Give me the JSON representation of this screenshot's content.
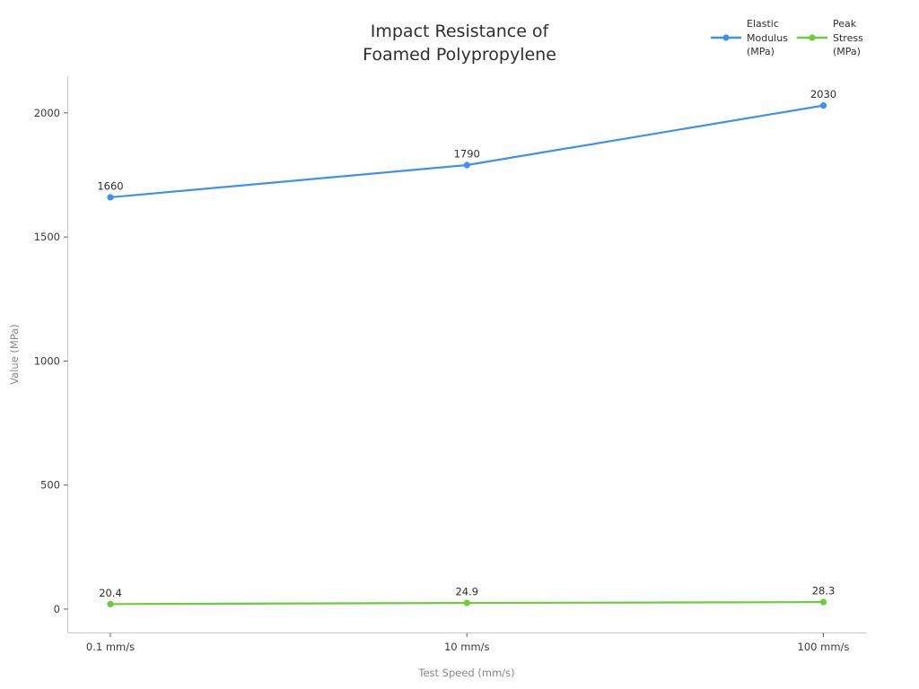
{
  "chart_data": {
    "type": "line",
    "title": "Impact Resistance of\nFoamed Polypropylene",
    "xlabel": "Test Speed (mm/s)",
    "ylabel": "Value (MPa)",
    "categories": [
      "0.1 mm/s",
      "10 mm/s",
      "100 mm/s"
    ],
    "yticks": [
      "0",
      "500",
      "1000",
      "1500",
      "2000"
    ],
    "ytick_values": [
      0,
      500,
      1000,
      1500,
      2000
    ],
    "ylim": [
      -96,
      2148
    ],
    "grid": false,
    "legend_position": "top-right",
    "background_color": "#ffffff",
    "series": [
      {
        "name": "Elastic Modulus (MPa)",
        "color": "#4090ee",
        "values": [
          1660,
          1790,
          2030
        ],
        "point_labels": [
          "1660",
          "1790",
          "2030"
        ]
      },
      {
        "name": "Peak Stress (MPa)",
        "color": "#6ecb3c",
        "values": [
          20.4,
          24.9,
          28.3
        ],
        "point_labels": [
          "20.4",
          "24.9",
          "28.3"
        ]
      }
    ],
    "colors": {
      "title": "#2f2f2f",
      "tick_label": "#3a3a3a",
      "axis_label": "#8a8a8a",
      "spine": "#c9c9c9",
      "tick_mark": "#606060",
      "data_label": "#2e2e2e"
    }
  }
}
